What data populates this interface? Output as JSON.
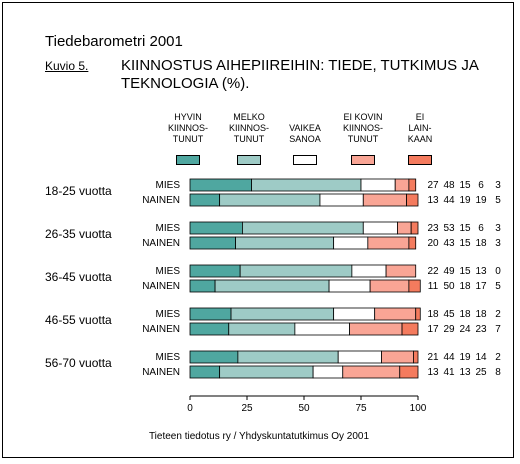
{
  "report_title": "Tiedebarometri 2001",
  "figure_label": "Kuvio 5.",
  "source": "Tieteen tiedotus ry / Yhdyskuntatutkimus Oy 2001",
  "chart_data": {
    "type": "bar",
    "orientation": "horizontal",
    "stacked": true,
    "title": "KIINNOSTUS AIHEPIIREIHIN: TIEDE, TUTKIMUS JA TEKNOLOGIA (%).",
    "xlim": [
      0,
      100
    ],
    "x_ticks": [
      "0",
      "25",
      "50",
      "75",
      "100"
    ],
    "legend_position": "top",
    "series": [
      {
        "name": "HYVIN\nKIINNOS-\nTUNUT",
        "color": "#4fa7a0"
      },
      {
        "name": "MELKO\nKIINNOS-\nTUNUT",
        "color": "#9ecbc6"
      },
      {
        "name": "VAIKEA\nSANOA",
        "color": "#ffffff"
      },
      {
        "name": "EI KOVIN\nKIINNOS-\nTUNUT",
        "color": "#f9a595"
      },
      {
        "name": "EI\nLAIN-\nKAAN",
        "color": "#f47b5e"
      }
    ],
    "groups": [
      {
        "label": "18-25 vuotta",
        "rows": [
          {
            "label": "MIES",
            "values": [
              27,
              48,
              15,
              6,
              3
            ]
          },
          {
            "label": "NAINEN",
            "values": [
              13,
              44,
              19,
              19,
              5
            ]
          }
        ]
      },
      {
        "label": "26-35 vuotta",
        "rows": [
          {
            "label": "MIES",
            "values": [
              23,
              53,
              15,
              6,
              3
            ]
          },
          {
            "label": "NAINEN",
            "values": [
              20,
              43,
              15,
              18,
              3
            ]
          }
        ]
      },
      {
        "label": "36-45 vuotta",
        "rows": [
          {
            "label": "MIES",
            "values": [
              22,
              49,
              15,
              13,
              0
            ]
          },
          {
            "label": "NAINEN",
            "values": [
              11,
              50,
              18,
              17,
              5
            ]
          }
        ]
      },
      {
        "label": "46-55 vuotta",
        "rows": [
          {
            "label": "MIES",
            "values": [
              18,
              45,
              18,
              18,
              2
            ]
          },
          {
            "label": "NAINEN",
            "values": [
              17,
              29,
              24,
              23,
              7
            ]
          }
        ]
      },
      {
        "label": "56-70 vuotta",
        "rows": [
          {
            "label": "MIES",
            "values": [
              21,
              44,
              19,
              14,
              2
            ]
          },
          {
            "label": "NAINEN",
            "values": [
              13,
              41,
              13,
              25,
              8
            ]
          }
        ]
      }
    ]
  }
}
